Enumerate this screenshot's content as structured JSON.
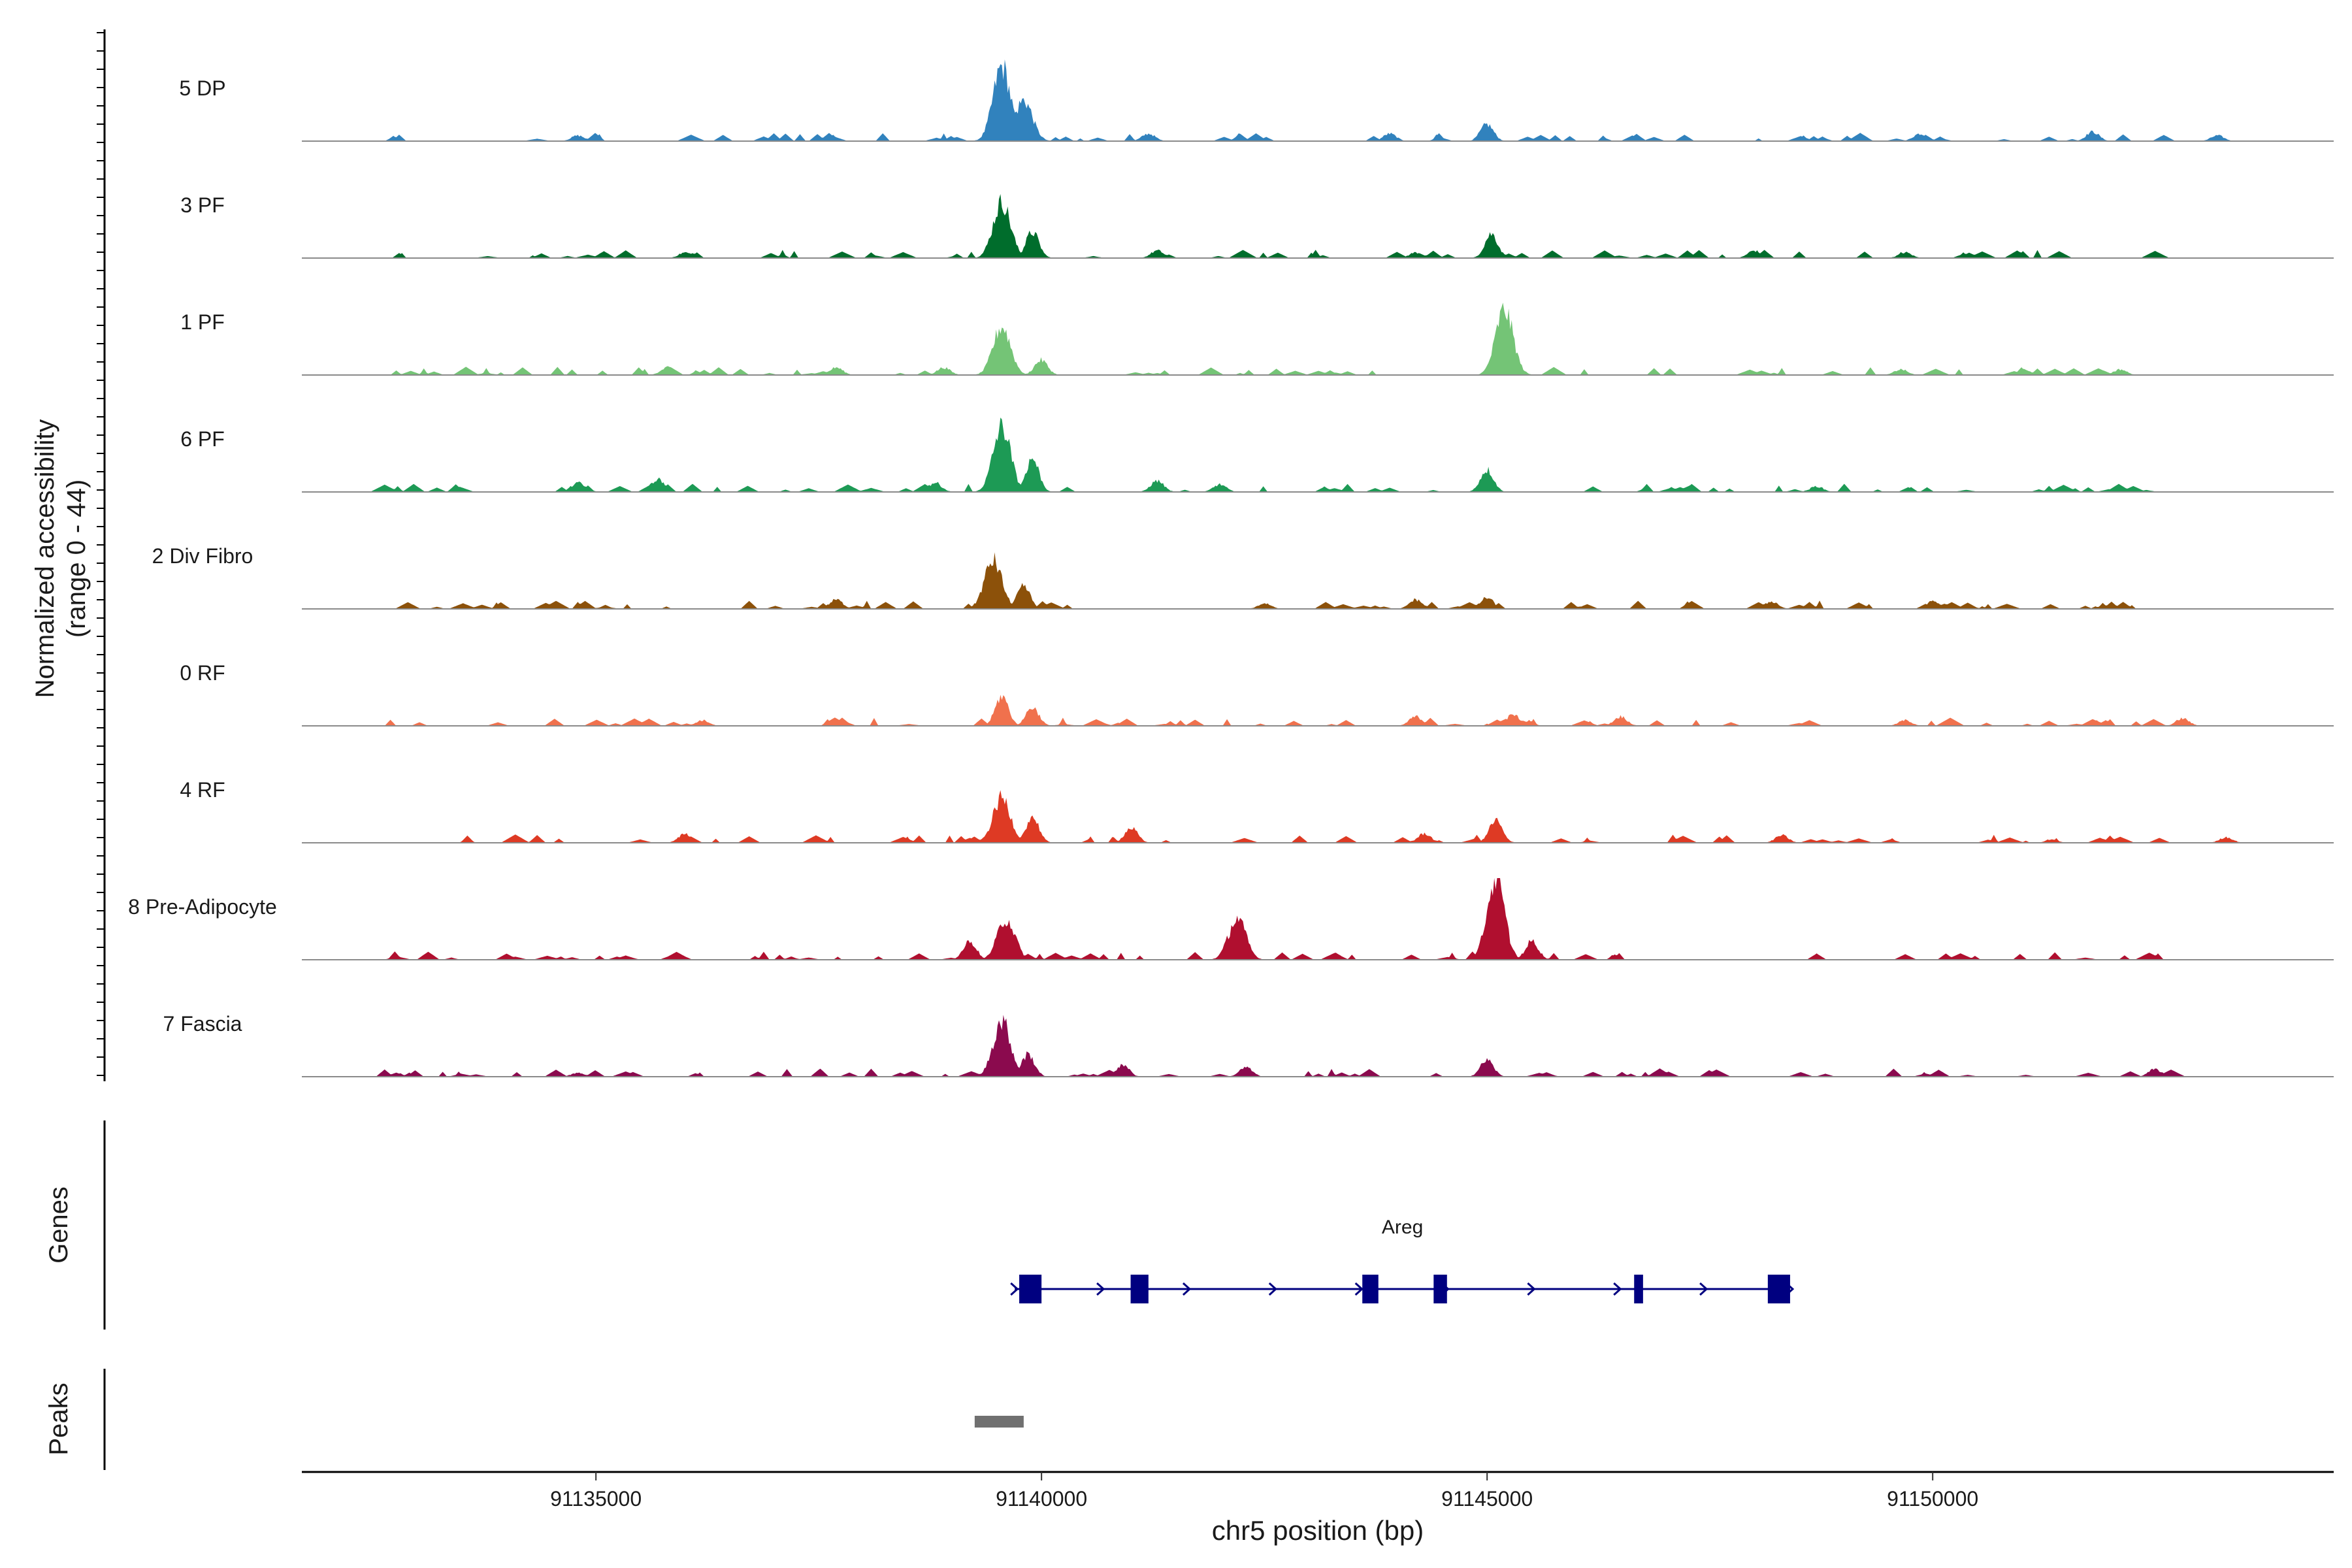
{
  "chart_data": {
    "type": "area",
    "title": "",
    "region": "chr5",
    "xlabel": "chr5 position (bp)",
    "ylabel_line1": "Normalized accessibility",
    "ylabel_line2": "(range 0 - 44)",
    "yrange": [
      0,
      44
    ],
    "xlim": [
      91131700,
      91154500
    ],
    "xticks": [
      91135000,
      91140000,
      91145000,
      91150000
    ],
    "xtick_labels": [
      "91135000",
      "91140000",
      "91145000",
      "91150000"
    ],
    "tracks": [
      {
        "name": "5 DP",
        "color": "#3182bd",
        "peaks": [
          [
            91139550,
            40
          ],
          [
            91139800,
            22
          ],
          [
            91145000,
            9
          ],
          [
            91149850,
            4
          ],
          [
            91151800,
            5
          ],
          [
            91153200,
            3
          ],
          [
            91141200,
            4
          ],
          [
            91134800,
            3
          ],
          [
            91143900,
            4
          ]
        ]
      },
      {
        "name": "3 PF",
        "color": "#006d2c",
        "peaks": [
          [
            91139550,
            30
          ],
          [
            91139900,
            14
          ],
          [
            91145050,
            13
          ],
          [
            91141300,
            4
          ],
          [
            91136000,
            3
          ],
          [
            91148000,
            4
          ],
          [
            91149700,
            3
          ],
          [
            91144200,
            3
          ]
        ]
      },
      {
        "name": "1 PF",
        "color": "#74c476",
        "peaks": [
          [
            91139550,
            26
          ],
          [
            91140000,
            8
          ],
          [
            91145200,
            35
          ],
          [
            91135800,
            4
          ],
          [
            91137700,
            4
          ],
          [
            91138900,
            4
          ],
          [
            91152100,
            3
          ],
          [
            91149650,
            3
          ]
        ]
      },
      {
        "name": "6 PF",
        "color": "#1d9a55",
        "peaks": [
          [
            91139550,
            35
          ],
          [
            91139900,
            18
          ],
          [
            91135700,
            7
          ],
          [
            91134800,
            5
          ],
          [
            91145000,
            12
          ],
          [
            91141300,
            6
          ],
          [
            91138800,
            5
          ],
          [
            91142000,
            4
          ],
          [
            91148700,
            3
          ]
        ]
      },
      {
        "name": "2 Div Fibro",
        "color": "#8c510a",
        "peaks": [
          [
            91139450,
            26
          ],
          [
            91139800,
            12
          ],
          [
            91137700,
            5
          ],
          [
            91144200,
            5
          ],
          [
            91145000,
            6
          ],
          [
            91148200,
            4
          ],
          [
            91150000,
            4
          ],
          [
            91142500,
            3
          ]
        ]
      },
      {
        "name": "0 RF",
        "color": "#f0714d",
        "peaks": [
          [
            91139550,
            16
          ],
          [
            91139900,
            10
          ],
          [
            91144200,
            5
          ],
          [
            91145300,
            6
          ],
          [
            91146500,
            5
          ],
          [
            91149700,
            3
          ],
          [
            91152800,
            4
          ],
          [
            91136200,
            3
          ]
        ]
      },
      {
        "name": "4 RF",
        "color": "#de3a24",
        "peaks": [
          [
            91139550,
            24
          ],
          [
            91139900,
            14
          ],
          [
            91141000,
            8
          ],
          [
            91136000,
            5
          ],
          [
            91144300,
            5
          ],
          [
            91145100,
            12
          ],
          [
            91148300,
            4
          ],
          [
            91153300,
            3
          ]
        ]
      },
      {
        "name": "8 Pre-Adipocyte",
        "color": "#b00f2f",
        "peaks": [
          [
            91139600,
            22
          ],
          [
            91142200,
            22
          ],
          [
            91145100,
            44
          ],
          [
            91145500,
            10
          ],
          [
            91139200,
            10
          ]
        ]
      },
      {
        "name": "7 Fascia",
        "color": "#8b0a4e",
        "peaks": [
          [
            91139550,
            30
          ],
          [
            91139850,
            12
          ],
          [
            91140900,
            6
          ],
          [
            91142300,
            5
          ],
          [
            91145000,
            9
          ],
          [
            91152500,
            4
          ],
          [
            91134800,
            2
          ]
        ]
      }
    ],
    "genes": [
      {
        "name": "Areg",
        "start": 91139700,
        "end": 91148400,
        "strand": "+",
        "color": "#000080",
        "exons": [
          [
            91139750,
            91140000
          ],
          [
            91141000,
            91141200
          ],
          [
            91143600,
            91143780
          ],
          [
            91144400,
            91144550
          ],
          [
            91146650,
            91146750
          ],
          [
            91148150,
            91148400
          ]
        ]
      }
    ],
    "peaks_regions": [
      [
        91139250,
        91139800
      ]
    ],
    "panel_labels": {
      "genes": "Genes",
      "peaks": "Peaks"
    }
  }
}
